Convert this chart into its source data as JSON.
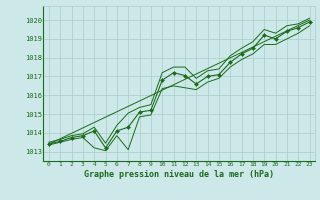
{
  "x": [
    0,
    1,
    2,
    3,
    4,
    5,
    6,
    7,
    8,
    9,
    10,
    11,
    12,
    13,
    14,
    15,
    16,
    17,
    18,
    19,
    20,
    21,
    22,
    23
  ],
  "pressure_main": [
    1013.4,
    1013.55,
    1013.75,
    1013.85,
    1014.1,
    1013.2,
    1014.1,
    1014.3,
    1015.1,
    1015.2,
    1016.8,
    1017.2,
    1017.05,
    1016.6,
    1017.0,
    1017.1,
    1017.75,
    1018.2,
    1018.5,
    1019.2,
    1019.0,
    1019.4,
    1019.6,
    1019.9
  ],
  "pressure_low": [
    1013.35,
    1013.5,
    1013.65,
    1013.75,
    1013.2,
    1013.05,
    1013.85,
    1013.1,
    1014.85,
    1014.95,
    1016.35,
    1016.5,
    1016.4,
    1016.3,
    1016.7,
    1016.9,
    1017.5,
    1017.9,
    1018.2,
    1018.7,
    1018.7,
    1019.0,
    1019.3,
    1019.7
  ],
  "pressure_high": [
    1013.5,
    1013.65,
    1013.85,
    1013.95,
    1014.3,
    1013.45,
    1014.4,
    1015.05,
    1015.35,
    1015.5,
    1017.2,
    1017.5,
    1017.5,
    1016.9,
    1017.3,
    1017.4,
    1018.1,
    1018.5,
    1018.85,
    1019.5,
    1019.3,
    1019.7,
    1019.8,
    1020.1
  ],
  "trend_x": [
    0,
    23
  ],
  "trend_y": [
    1013.4,
    1020.0
  ],
  "background_color": "#cce8e8",
  "grid_color": "#aacccc",
  "line_color": "#1a6b1a",
  "marker_color": "#1a6b1a",
  "title": "Graphe pression niveau de la mer (hPa)",
  "ylim_min": 1012.5,
  "ylim_max": 1020.75,
  "yticks": [
    1013,
    1014,
    1015,
    1016,
    1017,
    1018,
    1019,
    1020
  ],
  "xticks": [
    0,
    1,
    2,
    3,
    4,
    5,
    6,
    7,
    8,
    9,
    10,
    11,
    12,
    13,
    14,
    15,
    16,
    17,
    18,
    19,
    20,
    21,
    22,
    23
  ]
}
